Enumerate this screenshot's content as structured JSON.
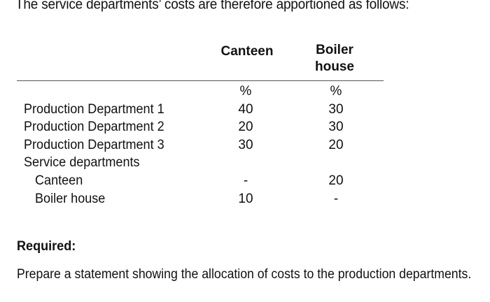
{
  "intro": "The service departments’ costs are therefore apportioned as follows:",
  "table": {
    "columns": [
      "Canteen",
      "Boiler\nhouse"
    ],
    "units": [
      "%",
      "%"
    ],
    "rows": [
      {
        "label": "Production Department 1",
        "canteen": "40",
        "boiler": "30"
      },
      {
        "label": "Production Department 2",
        "canteen": "20",
        "boiler": "30"
      },
      {
        "label": "Production Department 3",
        "canteen": "30",
        "boiler": "20"
      },
      {
        "label": "Service departments",
        "canteen": "",
        "boiler": ""
      },
      {
        "label": "Canteen",
        "canteen": "-",
        "boiler": "20"
      },
      {
        "label": "Boiler house",
        "canteen": "10",
        "boiler": "-"
      }
    ]
  },
  "required_heading": "Required:",
  "instruction": "Prepare a statement showing the allocation of costs to the production departments."
}
